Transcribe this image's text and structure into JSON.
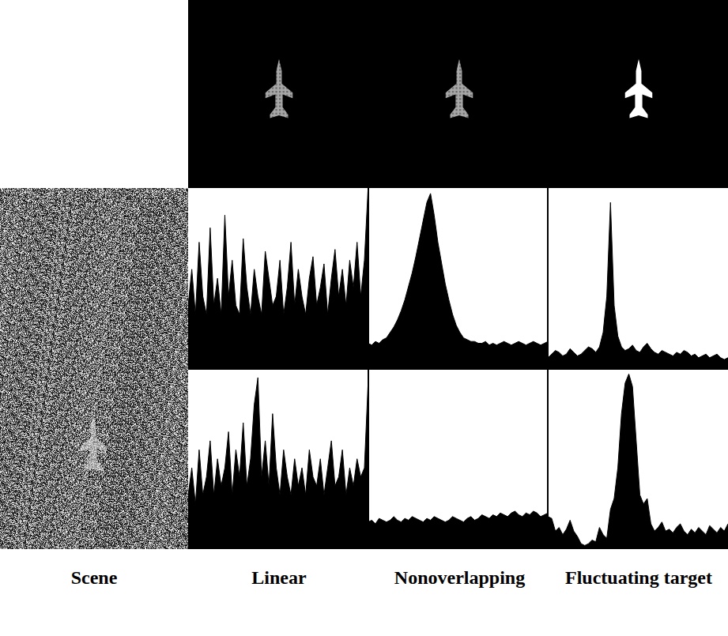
{
  "figure": {
    "columns": [
      "Scene",
      "Linear",
      "Nonoverlapping",
      "Fluctuating target"
    ]
  },
  "chart_data": [
    {
      "type": "area",
      "color": "#000000",
      "tick_labels": false,
      "xlim": [
        0,
        49
      ],
      "ylim": [
        0,
        1
      ],
      "values": [
        0.35,
        0.55,
        0.3,
        0.7,
        0.4,
        0.3,
        0.78,
        0.35,
        0.5,
        0.3,
        0.85,
        0.4,
        0.6,
        0.35,
        0.3,
        0.72,
        0.45,
        0.3,
        0.55,
        0.4,
        0.3,
        0.65,
        0.5,
        0.35,
        0.4,
        0.6,
        0.3,
        0.45,
        0.7,
        0.35,
        0.55,
        0.4,
        0.3,
        0.5,
        0.62,
        0.35,
        0.45,
        0.58,
        0.3,
        0.5,
        0.66,
        0.4,
        0.55,
        0.35,
        0.6,
        0.45,
        0.7,
        0.4,
        0.6,
        1.0
      ]
    },
    {
      "type": "area",
      "color": "#000000",
      "tick_labels": false,
      "xlim": [
        0,
        49
      ],
      "ylim": [
        0,
        1
      ],
      "values": [
        0.14,
        0.13,
        0.15,
        0.14,
        0.16,
        0.17,
        0.2,
        0.23,
        0.27,
        0.32,
        0.38,
        0.45,
        0.53,
        0.62,
        0.72,
        0.83,
        0.92,
        0.97,
        0.85,
        0.7,
        0.58,
        0.47,
        0.38,
        0.3,
        0.24,
        0.2,
        0.17,
        0.16,
        0.15,
        0.15,
        0.14,
        0.14,
        0.15,
        0.13,
        0.14,
        0.13,
        0.14,
        0.15,
        0.14,
        0.13,
        0.14,
        0.15,
        0.14,
        0.13,
        0.14,
        0.15,
        0.14,
        0.13,
        0.14,
        0.15
      ]
    },
    {
      "type": "area",
      "color": "#000000",
      "tick_labels": false,
      "xlim": [
        0,
        49
      ],
      "ylim": [
        0,
        1
      ],
      "values": [
        0.06,
        0.08,
        0.1,
        0.09,
        0.07,
        0.08,
        0.11,
        0.09,
        0.07,
        0.08,
        0.1,
        0.12,
        0.11,
        0.09,
        0.12,
        0.2,
        0.4,
        0.92,
        0.35,
        0.18,
        0.12,
        0.1,
        0.11,
        0.13,
        0.1,
        0.09,
        0.12,
        0.14,
        0.11,
        0.09,
        0.08,
        0.1,
        0.09,
        0.08,
        0.07,
        0.09,
        0.08,
        0.1,
        0.09,
        0.07,
        0.08,
        0.06,
        0.07,
        0.08,
        0.06,
        0.07,
        0.08,
        0.06,
        0.05,
        0.06
      ]
    },
    {
      "type": "area",
      "color": "#000000",
      "tick_labels": false,
      "xlim": [
        0,
        49
      ],
      "ylim": [
        0,
        1
      ],
      "values": [
        0.3,
        0.45,
        0.25,
        0.55,
        0.3,
        0.4,
        0.6,
        0.3,
        0.5,
        0.35,
        0.45,
        0.65,
        0.3,
        0.55,
        0.4,
        0.7,
        0.35,
        0.5,
        0.8,
        0.95,
        0.4,
        0.6,
        0.35,
        0.75,
        0.45,
        0.3,
        0.55,
        0.4,
        0.3,
        0.5,
        0.35,
        0.45,
        0.3,
        0.55,
        0.4,
        0.35,
        0.5,
        0.3,
        0.45,
        0.6,
        0.35,
        0.4,
        0.55,
        0.3,
        0.45,
        0.35,
        0.5,
        0.4,
        0.45,
        0.92
      ]
    },
    {
      "type": "area",
      "color": "#000000",
      "tick_labels": false,
      "xlim": [
        0,
        49
      ],
      "ylim": [
        0,
        1
      ],
      "values": [
        0.15,
        0.16,
        0.14,
        0.17,
        0.16,
        0.15,
        0.16,
        0.18,
        0.16,
        0.15,
        0.17,
        0.16,
        0.18,
        0.17,
        0.16,
        0.15,
        0.17,
        0.16,
        0.18,
        0.17,
        0.16,
        0.15,
        0.16,
        0.18,
        0.17,
        0.16,
        0.15,
        0.17,
        0.18,
        0.16,
        0.17,
        0.19,
        0.18,
        0.17,
        0.19,
        0.18,
        0.2,
        0.19,
        0.18,
        0.2,
        0.21,
        0.19,
        0.18,
        0.2,
        0.19,
        0.21,
        0.2,
        0.18,
        0.19,
        0.2
      ]
    },
    {
      "type": "area",
      "color": "#000000",
      "tick_labels": false,
      "xlim": [
        0,
        49
      ],
      "ylim": [
        0,
        1
      ],
      "values": [
        0.18,
        0.17,
        0.1,
        0.12,
        0.08,
        0.11,
        0.16,
        0.1,
        0.07,
        0.03,
        0.02,
        0.03,
        0.05,
        0.04,
        0.12,
        0.08,
        0.06,
        0.22,
        0.28,
        0.45,
        0.75,
        0.92,
        0.97,
        0.9,
        0.6,
        0.3,
        0.25,
        0.28,
        0.14,
        0.1,
        0.12,
        0.15,
        0.1,
        0.11,
        0.09,
        0.12,
        0.14,
        0.1,
        0.08,
        0.11,
        0.09,
        0.12,
        0.1,
        0.08,
        0.13,
        0.11,
        0.09,
        0.12,
        0.1,
        0.14
      ]
    }
  ]
}
